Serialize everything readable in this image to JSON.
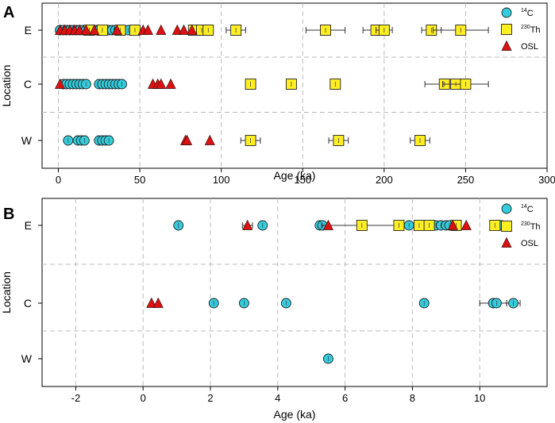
{
  "chart_data": [
    {
      "panel_label": "A",
      "type": "scatter",
      "xlabel": "Age (ka)",
      "ylabel": "Location",
      "xlim": [
        -10,
        300
      ],
      "xticks": [
        0,
        50,
        100,
        150,
        200,
        250,
        300
      ],
      "categories": [
        "E",
        "C",
        "W"
      ],
      "legend": {
        "placement": "top-right",
        "items": [
          "14C",
          "230Th",
          "OSL"
        ]
      },
      "series": [
        {
          "name": "14C",
          "marker": "circle",
          "color": "#33ccdd",
          "points": [
            {
              "loc": "E",
              "x": 1
            },
            {
              "loc": "E",
              "x": 3
            },
            {
              "loc": "E",
              "x": 5
            },
            {
              "loc": "E",
              "x": 7
            },
            {
              "loc": "E",
              "x": 9
            },
            {
              "loc": "E",
              "x": 11
            },
            {
              "loc": "E",
              "x": 13
            },
            {
              "loc": "E",
              "x": 15
            },
            {
              "loc": "E",
              "x": 17
            },
            {
              "loc": "E",
              "x": 19
            },
            {
              "loc": "E",
              "x": 21
            },
            {
              "loc": "E",
              "x": 23
            },
            {
              "loc": "E",
              "x": 25
            },
            {
              "loc": "E",
              "x": 27
            },
            {
              "loc": "E",
              "x": 29
            },
            {
              "loc": "E",
              "x": 31
            },
            {
              "loc": "E",
              "x": 33
            },
            {
              "loc": "E",
              "x": 35
            },
            {
              "loc": "E",
              "x": 37
            },
            {
              "loc": "E",
              "x": 40
            },
            {
              "loc": "E",
              "x": 43
            },
            {
              "loc": "C",
              "x": 3
            },
            {
              "loc": "C",
              "x": 5
            },
            {
              "loc": "C",
              "x": 7
            },
            {
              "loc": "C",
              "x": 9
            },
            {
              "loc": "C",
              "x": 11
            },
            {
              "loc": "C",
              "x": 13
            },
            {
              "loc": "C",
              "x": 15
            },
            {
              "loc": "C",
              "x": 17
            },
            {
              "loc": "C",
              "x": 25
            },
            {
              "loc": "C",
              "x": 27
            },
            {
              "loc": "C",
              "x": 29
            },
            {
              "loc": "C",
              "x": 31
            },
            {
              "loc": "C",
              "x": 33
            },
            {
              "loc": "C",
              "x": 35
            },
            {
              "loc": "C",
              "x": 37
            },
            {
              "loc": "C",
              "x": 39
            },
            {
              "loc": "W",
              "x": 6
            },
            {
              "loc": "W",
              "x": 12
            },
            {
              "loc": "W",
              "x": 14
            },
            {
              "loc": "W",
              "x": 16
            },
            {
              "loc": "W",
              "x": 25
            },
            {
              "loc": "W",
              "x": 27
            },
            {
              "loc": "W",
              "x": 29
            },
            {
              "loc": "W",
              "x": 31
            }
          ]
        },
        {
          "name": "230Th",
          "marker": "square",
          "color": "#ffee22",
          "points": [
            {
              "loc": "E",
              "x": 19,
              "err": 2
            },
            {
              "loc": "E",
              "x": 27,
              "err": 2
            },
            {
              "loc": "E",
              "x": 38,
              "err": 2
            },
            {
              "loc": "E",
              "x": 47,
              "err": 3
            },
            {
              "loc": "E",
              "x": 83,
              "err": 3
            },
            {
              "loc": "E",
              "x": 88,
              "err": 3
            },
            {
              "loc": "E",
              "x": 92,
              "err": 3
            },
            {
              "loc": "E",
              "x": 109,
              "err": 6
            },
            {
              "loc": "E",
              "x": 164,
              "err": 12
            },
            {
              "loc": "E",
              "x": 195,
              "err": 8
            },
            {
              "loc": "E",
              "x": 200,
              "err": 5
            },
            {
              "loc": "E",
              "x": 229,
              "err": 6
            },
            {
              "loc": "E",
              "x": 247,
              "err": 17
            },
            {
              "loc": "C",
              "x": 118,
              "err": 3
            },
            {
              "loc": "C",
              "x": 143,
              "err": 3
            },
            {
              "loc": "C",
              "x": 170,
              "err": 3
            },
            {
              "loc": "C",
              "x": 237,
              "err": 12
            },
            {
              "loc": "C",
              "x": 244,
              "err": 8
            },
            {
              "loc": "C",
              "x": 250,
              "err": 14
            },
            {
              "loc": "W",
              "x": 118,
              "err": 6
            },
            {
              "loc": "W",
              "x": 172,
              "err": 6
            },
            {
              "loc": "W",
              "x": 222,
              "err": 6
            }
          ]
        },
        {
          "name": "OSL",
          "marker": "triangle",
          "color": "#dd1111",
          "points": [
            {
              "loc": "E",
              "x": 1
            },
            {
              "loc": "E",
              "x": 4
            },
            {
              "loc": "E",
              "x": 7
            },
            {
              "loc": "E",
              "x": 10
            },
            {
              "loc": "E",
              "x": 13
            },
            {
              "loc": "E",
              "x": 17
            },
            {
              "loc": "E",
              "x": 22
            },
            {
              "loc": "E",
              "x": 36
            },
            {
              "loc": "E",
              "x": 52
            },
            {
              "loc": "E",
              "x": 55
            },
            {
              "loc": "E",
              "x": 63
            },
            {
              "loc": "E",
              "x": 73
            },
            {
              "loc": "E",
              "x": 77
            },
            {
              "loc": "E",
              "x": 82
            },
            {
              "loc": "C",
              "x": 1
            },
            {
              "loc": "C",
              "x": 58
            },
            {
              "loc": "C",
              "x": 61
            },
            {
              "loc": "C",
              "x": 63
            },
            {
              "loc": "C",
              "x": 69
            },
            {
              "loc": "W",
              "x": 78
            },
            {
              "loc": "W",
              "x": 79
            },
            {
              "loc": "W",
              "x": 93
            }
          ]
        }
      ]
    },
    {
      "panel_label": "B",
      "type": "scatter",
      "xlabel": "Age (ka)",
      "ylabel": "Location",
      "xlim": [
        -3,
        12
      ],
      "xticks": [
        -2,
        0,
        2,
        4,
        6,
        8,
        10
      ],
      "categories": [
        "E",
        "C",
        "W"
      ],
      "legend": {
        "placement": "top-right",
        "items": [
          "14C",
          "230Th",
          "OSL"
        ]
      },
      "series": [
        {
          "name": "14C",
          "marker": "circle",
          "color": "#33ccdd",
          "points": [
            {
              "loc": "E",
              "x": 1.05
            },
            {
              "loc": "E",
              "x": 3.55
            },
            {
              "loc": "E",
              "x": 5.25
            },
            {
              "loc": "E",
              "x": 5.33
            },
            {
              "loc": "E",
              "x": 7.9
            },
            {
              "loc": "E",
              "x": 8.7
            },
            {
              "loc": "E",
              "x": 8.85
            },
            {
              "loc": "E",
              "x": 9.0
            },
            {
              "loc": "E",
              "x": 9.1
            },
            {
              "loc": "E",
              "x": 10.65
            },
            {
              "loc": "C",
              "x": 2.1
            },
            {
              "loc": "C",
              "x": 3.0
            },
            {
              "loc": "C",
              "x": 4.25
            },
            {
              "loc": "C",
              "x": 8.35
            },
            {
              "loc": "C",
              "x": 10.4,
              "err": 0.4
            },
            {
              "loc": "C",
              "x": 10.5
            },
            {
              "loc": "C",
              "x": 11.0,
              "err": 0.2
            },
            {
              "loc": "W",
              "x": 5.5
            }
          ]
        },
        {
          "name": "230Th",
          "marker": "square",
          "color": "#ffee22",
          "points": [
            {
              "loc": "E",
              "x": 6.5,
              "err": 1.2
            },
            {
              "loc": "E",
              "x": 7.6
            },
            {
              "loc": "E",
              "x": 8.2
            },
            {
              "loc": "E",
              "x": 8.5
            },
            {
              "loc": "E",
              "x": 9.3
            },
            {
              "loc": "E",
              "x": 10.45
            }
          ]
        },
        {
          "name": "OSL",
          "marker": "triangle",
          "color": "#dd1111",
          "points": [
            {
              "loc": "E",
              "x": 3.1,
              "err": 0.15
            },
            {
              "loc": "E",
              "x": 5.5
            },
            {
              "loc": "E",
              "x": 9.2
            },
            {
              "loc": "E",
              "x": 9.6
            },
            {
              "loc": "C",
              "x": 0.25
            },
            {
              "loc": "C",
              "x": 0.45
            }
          ]
        }
      ]
    }
  ]
}
